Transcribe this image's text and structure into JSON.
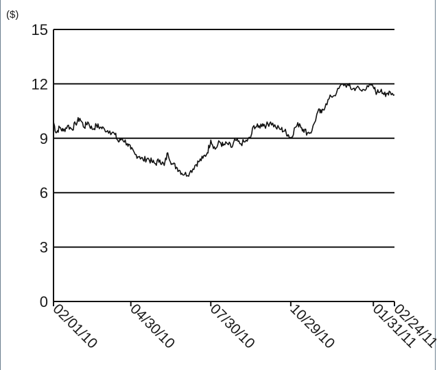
{
  "chart_data": {
    "type": "line",
    "unit_label": "($)",
    "ylim": [
      0,
      15
    ],
    "y_ticks": [
      "0",
      "3",
      "6",
      "9",
      "12",
      "15"
    ],
    "x_ticks": [
      "02/01/10",
      "04/30/10",
      "07/30/10",
      "10/29/10",
      "01/31/11",
      "02/24/11"
    ],
    "grid": true,
    "colors": {
      "line": "#111111",
      "grid": "#111111",
      "frame": "#6b7f8f"
    },
    "series": [
      {
        "points": [
          [
            "02/01/10",
            9.9
          ],
          [
            "02/04/10",
            9.3
          ],
          [
            "02/08/10",
            9.6
          ],
          [
            "02/12/10",
            9.4
          ],
          [
            "02/17/10",
            9.7
          ],
          [
            "02/22/10",
            9.5
          ],
          [
            "02/26/10",
            9.8
          ],
          [
            "03/03/10",
            10.1
          ],
          [
            "03/08/10",
            9.6
          ],
          [
            "03/12/10",
            9.9
          ],
          [
            "03/17/10",
            9.5
          ],
          [
            "03/22/10",
            9.7
          ],
          [
            "03/26/10",
            9.6
          ],
          [
            "03/31/10",
            9.5
          ],
          [
            "04/06/10",
            9.4
          ],
          [
            "04/12/10",
            9.2
          ],
          [
            "04/16/10",
            8.8
          ],
          [
            "04/20/10",
            9.0
          ],
          [
            "04/26/10",
            8.7
          ],
          [
            "04/30/10",
            8.4
          ],
          [
            "05/05/10",
            8.1
          ],
          [
            "05/10/10",
            8.0
          ],
          [
            "05/14/10",
            7.8
          ],
          [
            "05/19/10",
            7.9
          ],
          [
            "05/24/10",
            7.7
          ],
          [
            "05/28/10",
            7.6
          ],
          [
            "06/02/10",
            7.8
          ],
          [
            "06/07/10",
            7.5
          ],
          [
            "06/11/10",
            8.2
          ],
          [
            "06/16/10",
            7.6
          ],
          [
            "06/21/10",
            7.4
          ],
          [
            "06/25/10",
            7.2
          ],
          [
            "06/30/10",
            7.0
          ],
          [
            "07/06/10",
            7.1
          ],
          [
            "07/12/10",
            7.5
          ],
          [
            "07/16/10",
            7.7
          ],
          [
            "07/21/10",
            7.9
          ],
          [
            "07/26/10",
            8.2
          ],
          [
            "07/30/10",
            8.9
          ],
          [
            "08/04/10",
            8.4
          ],
          [
            "08/09/10",
            8.8
          ],
          [
            "08/13/10",
            8.6
          ],
          [
            "08/18/10",
            8.7
          ],
          [
            "08/23/10",
            8.5
          ],
          [
            "08/27/10",
            8.9
          ],
          [
            "09/01/10",
            8.7
          ],
          [
            "09/07/10",
            8.8
          ],
          [
            "09/13/10",
            9.0
          ],
          [
            "09/17/10",
            9.7
          ],
          [
            "09/22/10",
            9.6
          ],
          [
            "09/27/10",
            9.8
          ],
          [
            "10/01/10",
            9.7
          ],
          [
            "10/06/10",
            9.9
          ],
          [
            "10/12/10",
            9.6
          ],
          [
            "10/18/10",
            9.5
          ],
          [
            "10/22/10",
            9.4
          ],
          [
            "10/26/10",
            9.2
          ],
          [
            "10/29/10",
            9.0
          ],
          [
            "11/03/10",
            9.6
          ],
          [
            "11/08/10",
            9.8
          ],
          [
            "11/12/10",
            9.5
          ],
          [
            "11/17/10",
            9.3
          ],
          [
            "11/22/10",
            9.4
          ],
          [
            "11/29/10",
            10.5
          ],
          [
            "12/03/10",
            10.4
          ],
          [
            "12/08/10",
            10.9
          ],
          [
            "12/14/10",
            11.3
          ],
          [
            "12/20/10",
            11.5
          ],
          [
            "12/27/10",
            12.0
          ],
          [
            "01/03/11",
            11.9
          ],
          [
            "01/07/11",
            11.7
          ],
          [
            "01/12/11",
            11.8
          ],
          [
            "01/18/11",
            11.6
          ],
          [
            "01/24/11",
            11.9
          ],
          [
            "01/31/11",
            11.8
          ],
          [
            "02/04/11",
            11.5
          ],
          [
            "02/09/11",
            11.7
          ],
          [
            "02/14/11",
            11.3
          ],
          [
            "02/18/11",
            11.6
          ],
          [
            "02/24/11",
            11.4
          ]
        ]
      }
    ]
  }
}
